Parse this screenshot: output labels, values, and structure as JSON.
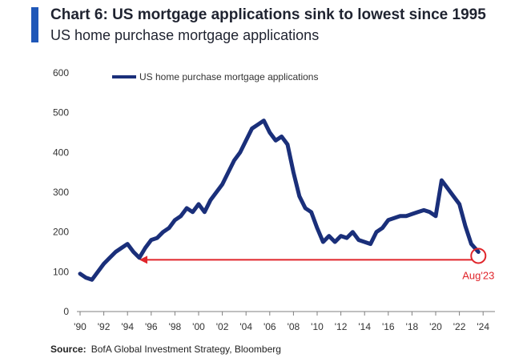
{
  "title": "Chart 6: US mortgage applications sink to lowest since 1995",
  "subtitle": "US home purchase mortgage applications",
  "source": {
    "label": "Source:",
    "text": "BofA Global Investment Strategy, Bloomberg"
  },
  "colors": {
    "accent_bar": "#1f57b8",
    "series": "#1a2f7a",
    "annotation": "#e0252b"
  },
  "chart_data": {
    "type": "line",
    "title": "Chart 6: US mortgage applications sink to lowest since 1995",
    "subtitle": "US home purchase mortgage applications",
    "xlabel": "",
    "ylabel": "",
    "xlim": [
      1990,
      2025
    ],
    "ylim": [
      0,
      600
    ],
    "grid": false,
    "legend_position": "top-left",
    "y_ticks": [
      0,
      100,
      200,
      300,
      400,
      500,
      600
    ],
    "x_ticks": [
      1990,
      1992,
      1994,
      1996,
      1998,
      2000,
      2002,
      2004,
      2006,
      2008,
      2010,
      2012,
      2014,
      2016,
      2018,
      2020,
      2022,
      2024
    ],
    "x_tick_labels": [
      "'90",
      "'92",
      "'94",
      "'96",
      "'98",
      "'00",
      "'02",
      "'04",
      "'06",
      "'08",
      "'10",
      "'12",
      "'14",
      "'16",
      "'18",
      "'20",
      "'22",
      "'24"
    ],
    "series": [
      {
        "name": "US home purchase mortgage applications",
        "x": [
          1990.0,
          1990.5,
          1991.0,
          1991.5,
          1992.0,
          1992.5,
          1993.0,
          1993.5,
          1994.0,
          1994.5,
          1995.0,
          1995.5,
          1996.0,
          1996.5,
          1997.0,
          1997.5,
          1998.0,
          1998.5,
          1999.0,
          1999.5,
          2000.0,
          2000.5,
          2001.0,
          2001.5,
          2002.0,
          2002.5,
          2003.0,
          2003.5,
          2004.0,
          2004.5,
          2005.0,
          2005.5,
          2006.0,
          2006.5,
          2007.0,
          2007.5,
          2008.0,
          2008.5,
          2009.0,
          2009.5,
          2010.0,
          2010.5,
          2011.0,
          2011.5,
          2012.0,
          2012.5,
          2013.0,
          2013.5,
          2014.0,
          2014.5,
          2015.0,
          2015.5,
          2016.0,
          2016.5,
          2017.0,
          2017.5,
          2018.0,
          2018.5,
          2019.0,
          2019.5,
          2020.0,
          2020.5,
          2021.0,
          2021.5,
          2022.0,
          2022.5,
          2023.0,
          2023.6
        ],
        "values": [
          95,
          85,
          80,
          100,
          120,
          135,
          150,
          160,
          170,
          150,
          135,
          160,
          180,
          185,
          200,
          210,
          230,
          240,
          260,
          250,
          270,
          250,
          280,
          300,
          320,
          350,
          380,
          400,
          430,
          460,
          470,
          480,
          450,
          430,
          440,
          420,
          350,
          290,
          260,
          250,
          210,
          175,
          190,
          175,
          190,
          185,
          200,
          180,
          175,
          170,
          200,
          210,
          230,
          235,
          240,
          240,
          245,
          250,
          255,
          250,
          240,
          330,
          310,
          290,
          270,
          215,
          170,
          150
        ]
      }
    ],
    "annotations": [
      {
        "type": "arrow",
        "from": [
          2023.6,
          130
        ],
        "to": [
          1995.0,
          130
        ]
      },
      {
        "type": "circle_label",
        "at": [
          2023.6,
          140
        ],
        "label": "Aug'23"
      }
    ]
  }
}
